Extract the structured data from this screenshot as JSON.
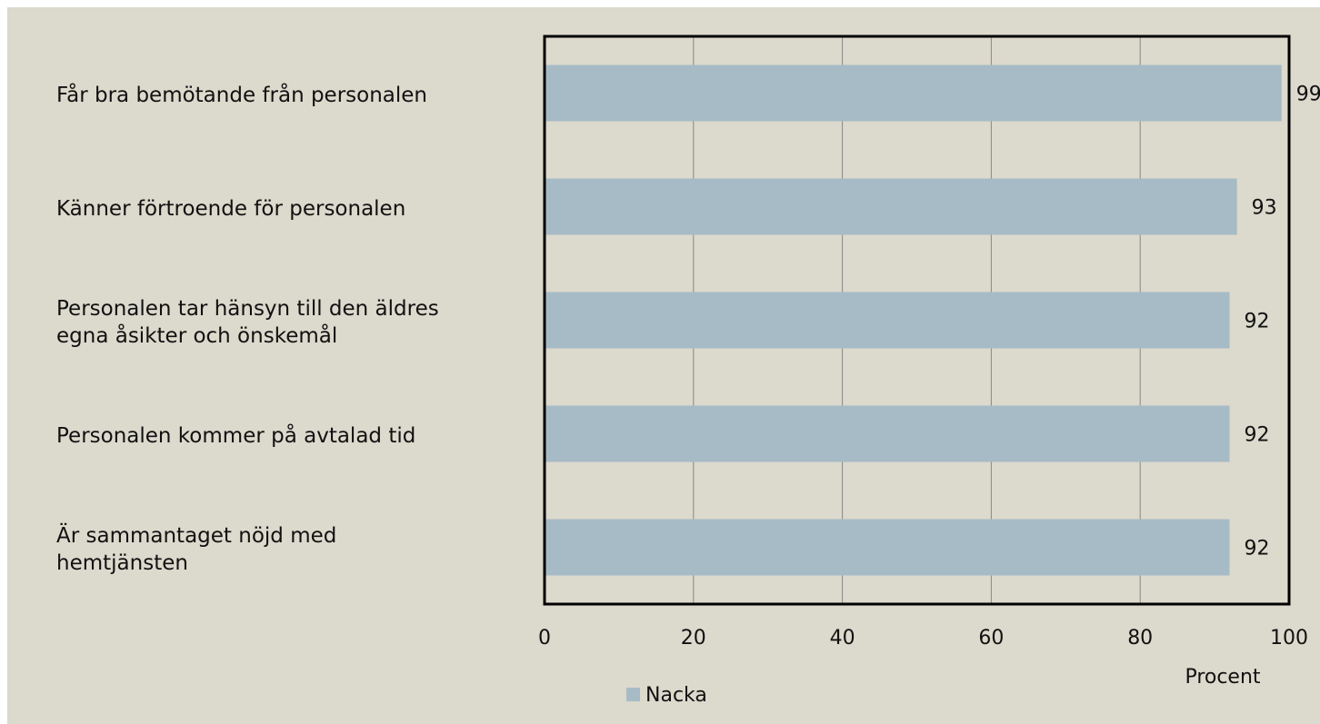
{
  "chart_data": {
    "type": "bar",
    "orientation": "horizontal",
    "categories": [
      "Får bra bemötande från personalen",
      "Känner förtroende för personalen",
      "Personalen tar hänsyn till den äldres\negna åsikter och önskemål",
      "Personalen kommer på avtalad tid",
      "Är sammantaget nöjd med\nhemtjänsten"
    ],
    "series": [
      {
        "name": "Nacka",
        "color": "#a7bbc6",
        "values": [
          99,
          93,
          92,
          92,
          92
        ]
      }
    ],
    "xlim": [
      0,
      100
    ],
    "xticks": [
      0,
      20,
      40,
      60,
      80,
      100
    ],
    "grid": true,
    "x_label": "Procent",
    "legend": "bottom"
  }
}
